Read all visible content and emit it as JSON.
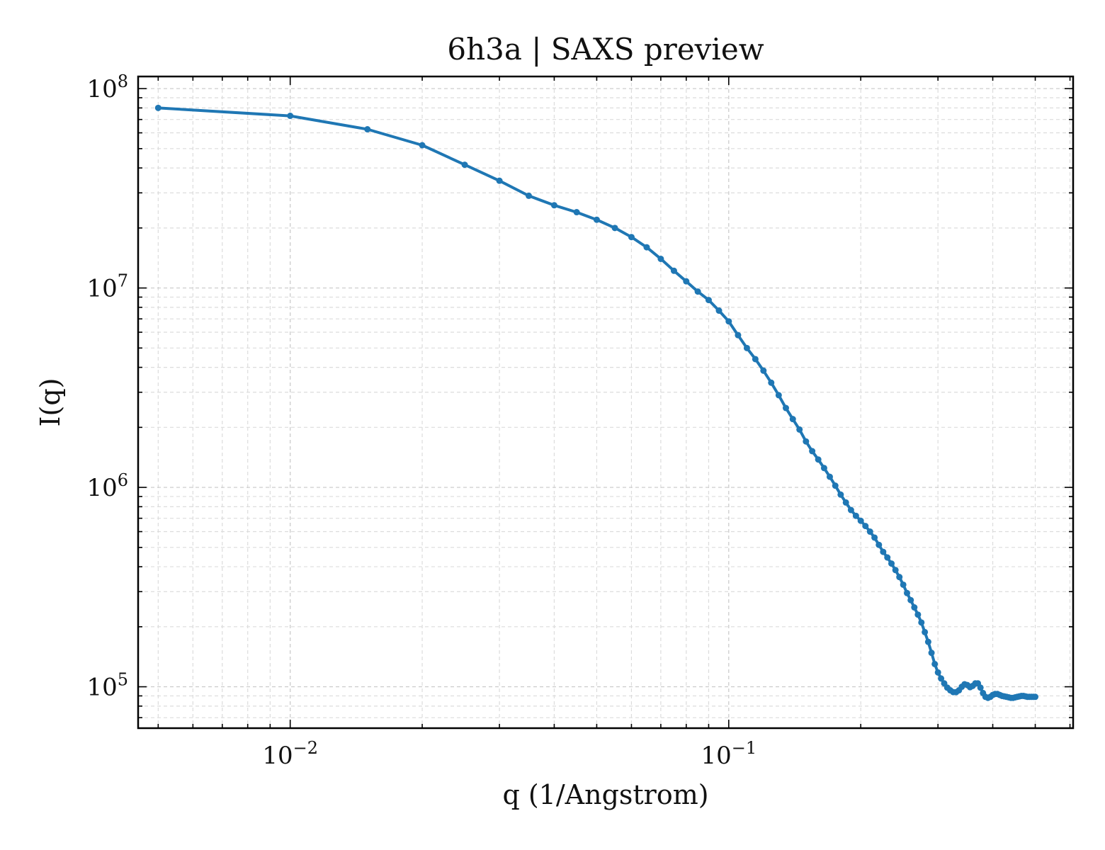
{
  "chart_data": {
    "type": "line",
    "title": "6h3a | SAXS preview",
    "xlabel": "q (1/Angstrom)",
    "ylabel": "I(q)",
    "xscale": "log",
    "yscale": "log",
    "xlim": [
      0.0045,
      0.61
    ],
    "ylim": [
      62000,
      115000000
    ],
    "grid": true,
    "legend": "none",
    "series_color": "#1f77b4",
    "x_ticks": [
      {
        "value": 0.01,
        "base": "10",
        "exp": "−2"
      },
      {
        "value": 0.1,
        "base": "10",
        "exp": "−1"
      }
    ],
    "y_ticks": [
      {
        "value": 100000,
        "base": "10",
        "exp": "5"
      },
      {
        "value": 1000000,
        "base": "10",
        "exp": "6"
      },
      {
        "value": 10000000,
        "base": "10",
        "exp": "7"
      },
      {
        "value": 100000000,
        "base": "10",
        "exp": "8"
      }
    ],
    "series": [
      {
        "x": [
          0.005,
          0.01,
          0.015,
          0.02,
          0.025,
          0.03,
          0.035,
          0.04,
          0.045,
          0.05,
          0.055,
          0.06,
          0.065,
          0.07,
          0.075,
          0.08,
          0.085,
          0.09,
          0.095,
          0.1,
          0.105,
          0.11,
          0.115,
          0.12,
          0.125,
          0.13,
          0.135,
          0.14,
          0.145,
          0.15,
          0.155,
          0.16,
          0.165,
          0.17,
          0.175,
          0.18,
          0.185,
          0.19,
          0.195,
          0.2,
          0.205,
          0.21,
          0.215,
          0.22,
          0.225,
          0.23,
          0.235,
          0.24,
          0.245,
          0.25,
          0.255,
          0.26,
          0.265,
          0.27,
          0.275,
          0.28,
          0.285,
          0.29,
          0.295,
          0.3,
          0.305,
          0.31,
          0.315,
          0.32,
          0.325,
          0.33,
          0.335,
          0.34,
          0.345,
          0.35,
          0.355,
          0.36,
          0.365,
          0.37,
          0.375,
          0.38,
          0.385,
          0.39,
          0.395,
          0.4,
          0.405,
          0.41,
          0.415,
          0.42,
          0.425,
          0.43,
          0.435,
          0.44,
          0.445,
          0.45,
          0.455,
          0.46,
          0.465,
          0.47,
          0.475,
          0.48,
          0.485,
          0.49,
          0.495,
          0.5
        ],
        "y": [
          80000000,
          73000000,
          62500000,
          52000000,
          41500000,
          34500000,
          29000000,
          26000000,
          24000000,
          22000000,
          20000000,
          18000000,
          16000000,
          14000000,
          12200000,
          10800000,
          9600000,
          8700000,
          7700000,
          6800000,
          5800000,
          5000000,
          4400000,
          3850000,
          3350000,
          2900000,
          2500000,
          2200000,
          1950000,
          1700000,
          1520000,
          1380000,
          1250000,
          1130000,
          1020000,
          920000,
          840000,
          770000,
          720000,
          680000,
          640000,
          600000,
          560000,
          515000,
          475000,
          445000,
          415000,
          385000,
          355000,
          325000,
          295000,
          272000,
          250000,
          230000,
          210000,
          188000,
          168000,
          148000,
          130000,
          118000,
          110000,
          104000,
          99000,
          96000,
          94000,
          94000,
          96000,
          100000,
          103000,
          102000,
          99500,
          101000,
          104000,
          104000,
          99000,
          93000,
          89000,
          88000,
          89000,
          91000,
          92000,
          92000,
          91000,
          90000,
          89500,
          89000,
          88500,
          88000,
          88000,
          88500,
          89000,
          89500,
          90000,
          90000,
          89500,
          89000,
          89000,
          89000,
          89000,
          89000
        ]
      }
    ]
  }
}
